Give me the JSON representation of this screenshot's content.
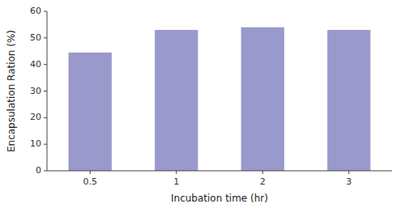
{
  "chart_data": {
    "type": "bar",
    "categories": [
      "0.5",
      "1",
      "2",
      "3"
    ],
    "values": [
      44.5,
      53.0,
      54.0,
      53.0
    ],
    "color": "#9999cc",
    "xlabel": "Incubation time (hr)",
    "ylabel": "Encapsulation Ration (%)",
    "ylim": [
      0,
      60
    ],
    "yticks": [
      0,
      10,
      20,
      30,
      40,
      50,
      60
    ],
    "grid": false
  }
}
